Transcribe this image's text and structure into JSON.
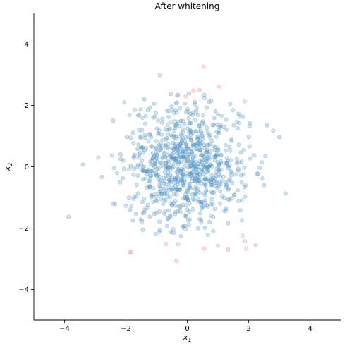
{
  "chart_data": {
    "type": "scatter",
    "title": "After whitening",
    "xlabel": "x",
    "xlabel_sub": "1",
    "ylabel": "x",
    "ylabel_sub": "2",
    "xlim": [
      -5,
      5
    ],
    "ylim": [
      -5,
      5
    ],
    "xticks": [
      -4,
      -2,
      0,
      2,
      4
    ],
    "yticks": [
      -4,
      -2,
      0,
      2,
      4
    ],
    "grid": false,
    "legend": "none",
    "colors": {
      "inlier": "#4a90c4",
      "outlier": "#e8797f",
      "axis": "#000000"
    },
    "outliers": [
      [
        -0.9,
        2.98
      ],
      [
        0.53,
        3.26
      ],
      [
        1.03,
        2.62
      ],
      [
        -0.33,
        2.33
      ],
      [
        -0.05,
        2.3
      ],
      [
        0.2,
        2.48
      ],
      [
        0.4,
        2.5
      ],
      [
        1.87,
        2.13
      ],
      [
        -1.88,
        -2.78
      ],
      [
        -1.82,
        -2.78
      ],
      [
        -0.7,
        -2.52
      ],
      [
        -0.3,
        -2.52
      ],
      [
        0.55,
        -2.67
      ],
      [
        1.0,
        -2.57
      ],
      [
        1.33,
        -2.7
      ],
      [
        1.8,
        -2.25
      ],
      [
        1.88,
        -2.43
      ],
      [
        1.93,
        -2.67
      ],
      [
        2.23,
        -2.55
      ],
      [
        -0.35,
        -3.07
      ]
    ],
    "inliers_fixed": [
      [
        -3.87,
        -1.63
      ],
      [
        -3.4,
        0.07
      ],
      [
        -2.9,
        0.3
      ],
      [
        -2.78,
        -0.33
      ],
      [
        -2.42,
        1.5
      ],
      [
        -2.42,
        -1.2
      ],
      [
        -2.35,
        -1.22
      ],
      [
        -2.05,
        2.1
      ],
      [
        3.2,
        -0.87
      ],
      [
        3.0,
        0.97
      ],
      [
        2.8,
        1.18
      ],
      [
        2.6,
        1.35
      ],
      [
        2.5,
        -0.6
      ],
      [
        2.55,
        0.35
      ],
      [
        -1.4,
        2.2
      ],
      [
        1.4,
        2.05
      ]
    ],
    "cloud": {
      "count": 840,
      "sigma": 1.0,
      "radius_limit": 2.55,
      "seed": 7
    }
  }
}
